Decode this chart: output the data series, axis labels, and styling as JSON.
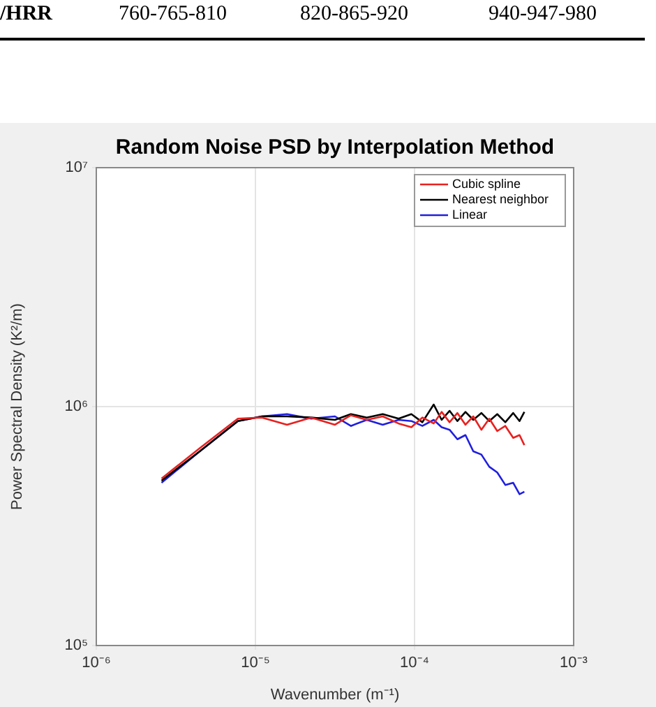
{
  "chart_data": {
    "type": "line",
    "title": "Random Noise PSD by Interpolation Method",
    "xlabel": "Wavenumber (m⁻¹)",
    "ylabel": "Power Spectral Density (K²/m)",
    "annotations": [
      "/HRR",
      "760-765-810",
      "820-865-920",
      "940-947-980"
    ],
    "log": "xy",
    "grid": true,
    "legend": "top right",
    "marker": "none",
    "line_style": "solid",
    "xlim": [
      1e-06,
      0.001
    ],
    "xticks": [
      {
        "value": 1e-06,
        "label": "10⁻⁶"
      },
      {
        "value": 1e-05,
        "label": "10⁻⁵"
      },
      {
        "value": 0.0001,
        "label": "10⁻⁴"
      },
      {
        "value": 0.001,
        "label": "10⁻³"
      }
    ],
    "ylim": [
      100000.0,
      10000000.0
    ],
    "yticks": [
      {
        "value": 100000.0,
        "label": "10⁵"
      },
      {
        "value": 1000000.0,
        "label": "10⁶"
      },
      {
        "value": 10000000.0,
        "label": "10⁷"
      }
    ],
    "x": [
      2.57e-06,
      4.47e-06,
      7.76e-06,
      1.1e-05,
      1.58e-05,
      2.24e-05,
      3.16e-05,
      3.98e-05,
      5.01e-05,
      6.31e-05,
      7.94e-05,
      9.55e-05,
      0.000112,
      0.000132,
      0.000148,
      0.000166,
      0.000186,
      0.000209,
      0.000234,
      0.000263,
      0.000295,
      0.000331,
      0.000372,
      0.000417,
      0.000457,
      0.00049
    ],
    "series": [
      {
        "name": "Cubic spline",
        "color": "#e8211f",
        "values": [
          500000.0,
          670000.0,
          890000.0,
          900000.0,
          840000.0,
          900000.0,
          840000.0,
          920000.0,
          880000.0,
          910000.0,
          850000.0,
          820000.0,
          900000.0,
          850000.0,
          950000.0,
          860000.0,
          940000.0,
          840000.0,
          910000.0,
          800000.0,
          890000.0,
          790000.0,
          830000.0,
          740000.0,
          760000.0,
          690000.0
        ]
      },
      {
        "name": "Nearest neighbor",
        "color": "#000000",
        "values": [
          490000.0,
          650000.0,
          870000.0,
          910000.0,
          910000.0,
          900000.0,
          880000.0,
          930000.0,
          900000.0,
          930000.0,
          890000.0,
          930000.0,
          860000.0,
          1020000.0,
          880000.0,
          960000.0,
          870000.0,
          950000.0,
          880000.0,
          940000.0,
          870000.0,
          930000.0,
          860000.0,
          940000.0,
          870000.0,
          950000.0
        ]
      },
      {
        "name": "Linear",
        "color": "#1f1fe0",
        "values": [
          480000.0,
          650000.0,
          870000.0,
          910000.0,
          930000.0,
          890000.0,
          910000.0,
          830000.0,
          880000.0,
          840000.0,
          880000.0,
          870000.0,
          830000.0,
          880000.0,
          820000.0,
          800000.0,
          730000.0,
          760000.0,
          650000.0,
          630000.0,
          560000.0,
          530000.0,
          470000.0,
          480000.0,
          430000.0,
          440000.0
        ]
      }
    ]
  }
}
